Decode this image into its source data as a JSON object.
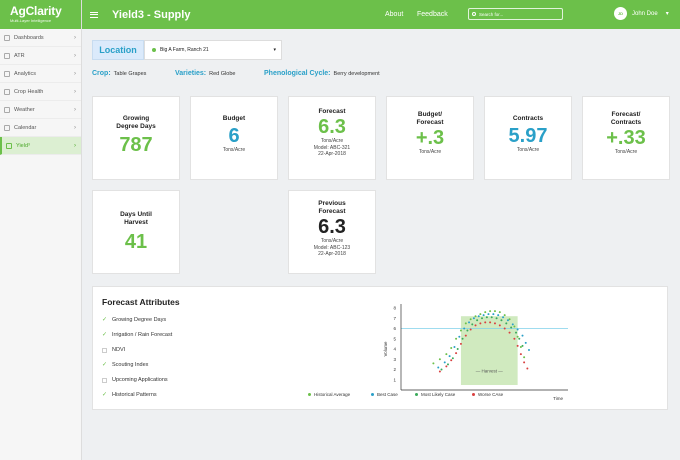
{
  "app": {
    "logo": "AgClarity",
    "tagline": "Multi-Layer Intelligence",
    "page_title": "Yield3 - Supply"
  },
  "colors": {
    "brand": "#6cc04a",
    "accent": "#2aa0c8",
    "historical": "#6cc04a",
    "best": "#2aa0c8",
    "most_likely": "#3aaa5a",
    "worse": "#d94040"
  },
  "sidebar": {
    "items": [
      {
        "label": "Dashboards",
        "icon": "dashboard-icon"
      },
      {
        "label": "ATR",
        "icon": "atr-icon"
      },
      {
        "label": "Analytics",
        "icon": "analytics-icon"
      },
      {
        "label": "Crop Health",
        "icon": "crop-health-icon"
      },
      {
        "label": "Weather",
        "icon": "weather-icon"
      },
      {
        "label": "Calendar",
        "icon": "calendar-icon"
      },
      {
        "label": "Yield³",
        "icon": "yield-icon",
        "active": true
      }
    ]
  },
  "topbar": {
    "about": "About",
    "feedback": "Feedback",
    "search_placeholder": "Search for...",
    "user_initials": "JD",
    "user_name": "John Doe"
  },
  "location": {
    "button": "Location",
    "selected": "Big A Farm, Ranch 21"
  },
  "meta": {
    "crop_label": "Crop:",
    "crop_value": "Table Grapes",
    "varieties_label": "Varieties:",
    "varieties_value": "Red Globe",
    "phen_label": "Phenological Cycle:",
    "phen_value": "Berry development"
  },
  "cards": {
    "gdd": {
      "title1": "Growing",
      "title2": "Degree Days",
      "value": "787"
    },
    "budget": {
      "title": "Budget",
      "value": "6",
      "unit": "Tons/Acre"
    },
    "forecast": {
      "title": "Forecast",
      "value": "6.3",
      "unit": "Tons/Acre",
      "model": "Model: ABC-321",
      "date": "22-Apr-2018"
    },
    "budget_forecast": {
      "title1": "Budget/",
      "title2": "Forecast",
      "value": "+.3",
      "unit": "Tons/Acre"
    },
    "contracts": {
      "title": "Contracts",
      "value": "5.97",
      "unit": "Tons/Acre"
    },
    "forecast_contracts": {
      "title1": "Forecast/",
      "title2": "Contracts",
      "value": "+.33",
      "unit": "Tons/Acre"
    },
    "days_until": {
      "title1": "Days Until",
      "title2": "Harvest",
      "value": "41"
    },
    "prev_forecast": {
      "title1": "Previous",
      "title2": "Forecast",
      "value": "6.3",
      "unit": "Tons/Acre",
      "model": "Model: ABC-123",
      "date": "22-Apr-2018"
    }
  },
  "forecast_attributes": {
    "title": "Forecast Attributes",
    "items": [
      {
        "label": "Growing Degree Days",
        "checked": true
      },
      {
        "label": "Irrigation / Rain Forecast",
        "checked": true
      },
      {
        "label": "NDVI",
        "checked": false
      },
      {
        "label": "Scouting Index",
        "checked": true
      },
      {
        "label": "Upcoming Applications",
        "checked": false
      },
      {
        "label": "Historical Patterns",
        "checked": true
      }
    ]
  },
  "chart_data": {
    "type": "scatter",
    "ylabel": "Volume",
    "xlabel": "Time",
    "yticks": [
      "1",
      "2",
      "3",
      "4",
      "5",
      "6",
      "7",
      "8"
    ],
    "ylim": [
      0,
      8
    ],
    "threshold_y": 6,
    "harvest_label": "Harvest",
    "harvest_window": [
      0.37,
      0.72
    ],
    "series": [
      {
        "name": "Historical Average",
        "color": "#6cc04a",
        "points": [
          [
            0.2,
            2.6
          ],
          [
            0.24,
            3.0
          ],
          [
            0.28,
            3.5
          ],
          [
            0.31,
            4.1
          ],
          [
            0.34,
            5.0
          ],
          [
            0.37,
            5.8
          ],
          [
            0.4,
            6.5
          ],
          [
            0.43,
            6.9
          ],
          [
            0.46,
            7.2
          ],
          [
            0.49,
            7.4
          ],
          [
            0.52,
            7.6
          ],
          [
            0.55,
            7.7
          ],
          [
            0.58,
            7.7
          ],
          [
            0.61,
            7.6
          ],
          [
            0.64,
            7.3
          ],
          [
            0.67,
            6.9
          ],
          [
            0.7,
            6.2
          ],
          [
            0.72,
            5.2
          ],
          [
            0.74,
            4.2
          ],
          [
            0.76,
            3.2
          ]
        ]
      },
      {
        "name": "Best Case",
        "color": "#2aa0c8",
        "points": [
          [
            0.23,
            2.2
          ],
          [
            0.27,
            2.7
          ],
          [
            0.3,
            3.3
          ],
          [
            0.33,
            4.2
          ],
          [
            0.36,
            5.2
          ],
          [
            0.39,
            6.0
          ],
          [
            0.42,
            6.6
          ],
          [
            0.45,
            7.0
          ],
          [
            0.48,
            7.2
          ],
          [
            0.51,
            7.3
          ],
          [
            0.54,
            7.4
          ],
          [
            0.57,
            7.4
          ],
          [
            0.6,
            7.3
          ],
          [
            0.63,
            7.1
          ],
          [
            0.66,
            6.8
          ],
          [
            0.69,
            6.4
          ],
          [
            0.72,
            5.9
          ],
          [
            0.75,
            5.3
          ],
          [
            0.77,
            4.6
          ],
          [
            0.79,
            3.9
          ]
        ]
      },
      {
        "name": "Most Likely Case",
        "color": "#3aaa5a",
        "points": [
          [
            0.25,
            2.0
          ],
          [
            0.29,
            2.5
          ],
          [
            0.32,
            3.1
          ],
          [
            0.35,
            4.0
          ],
          [
            0.38,
            5.0
          ],
          [
            0.41,
            5.8
          ],
          [
            0.44,
            6.4
          ],
          [
            0.47,
            6.8
          ],
          [
            0.5,
            7.0
          ],
          [
            0.53,
            7.1
          ],
          [
            0.56,
            7.1
          ],
          [
            0.59,
            7.0
          ],
          [
            0.62,
            6.8
          ],
          [
            0.65,
            6.5
          ],
          [
            0.68,
            6.1
          ],
          [
            0.71,
            5.6
          ],
          [
            0.73,
            5.0
          ],
          [
            0.75,
            4.3
          ]
        ]
      },
      {
        "name": "Worse CAse",
        "color": "#d94040",
        "points": [
          [
            0.24,
            1.8
          ],
          [
            0.28,
            2.3
          ],
          [
            0.31,
            2.9
          ],
          [
            0.34,
            3.6
          ],
          [
            0.37,
            4.5
          ],
          [
            0.4,
            5.3
          ],
          [
            0.43,
            5.9
          ],
          [
            0.46,
            6.3
          ],
          [
            0.49,
            6.5
          ],
          [
            0.52,
            6.6
          ],
          [
            0.55,
            6.6
          ],
          [
            0.58,
            6.5
          ],
          [
            0.61,
            6.3
          ],
          [
            0.64,
            6.0
          ],
          [
            0.67,
            5.6
          ],
          [
            0.7,
            5.0
          ],
          [
            0.72,
            4.3
          ],
          [
            0.74,
            3.5
          ],
          [
            0.76,
            2.7
          ],
          [
            0.78,
            2.1
          ]
        ]
      }
    ]
  }
}
